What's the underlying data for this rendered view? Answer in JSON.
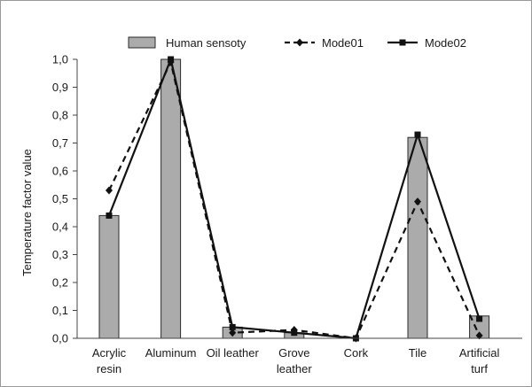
{
  "chart_data": {
    "type": "bar",
    "ylabel": "Temperature factor value",
    "ylim": [
      0,
      1.0
    ],
    "ytick_step": 0.1,
    "ytick_labels": [
      "0,0",
      "0,1",
      "0,2",
      "0,3",
      "0,4",
      "0,5",
      "0,6",
      "0,7",
      "0,8",
      "0,9",
      "1,0"
    ],
    "categories": [
      [
        "Acrylic",
        "resin"
      ],
      [
        "Aluminum"
      ],
      [
        "Oil leather"
      ],
      [
        "Grove",
        "leather"
      ],
      [
        "Cork"
      ],
      [
        "Tile"
      ],
      [
        "Artificial",
        "turf"
      ]
    ],
    "series": [
      {
        "name": "Human sensoty",
        "type": "bar",
        "values": [
          0.44,
          1.0,
          0.04,
          0.02,
          0.0,
          0.72,
          0.08
        ]
      },
      {
        "name": "Mode01",
        "type": "line",
        "style": "dashed",
        "marker": "diamond",
        "values": [
          0.53,
          0.99,
          0.02,
          0.03,
          0.0,
          0.49,
          0.01
        ]
      },
      {
        "name": "Mode02",
        "type": "line",
        "style": "solid",
        "marker": "square",
        "values": [
          0.44,
          1.0,
          0.04,
          0.02,
          0.0,
          0.73,
          0.07
        ]
      }
    ],
    "legend_position": "top",
    "grid": false,
    "colors": {
      "bar_fill": "#ababab",
      "bar_stroke": "#2b2b2b",
      "line": "#111111",
      "axis": "#444444"
    }
  }
}
